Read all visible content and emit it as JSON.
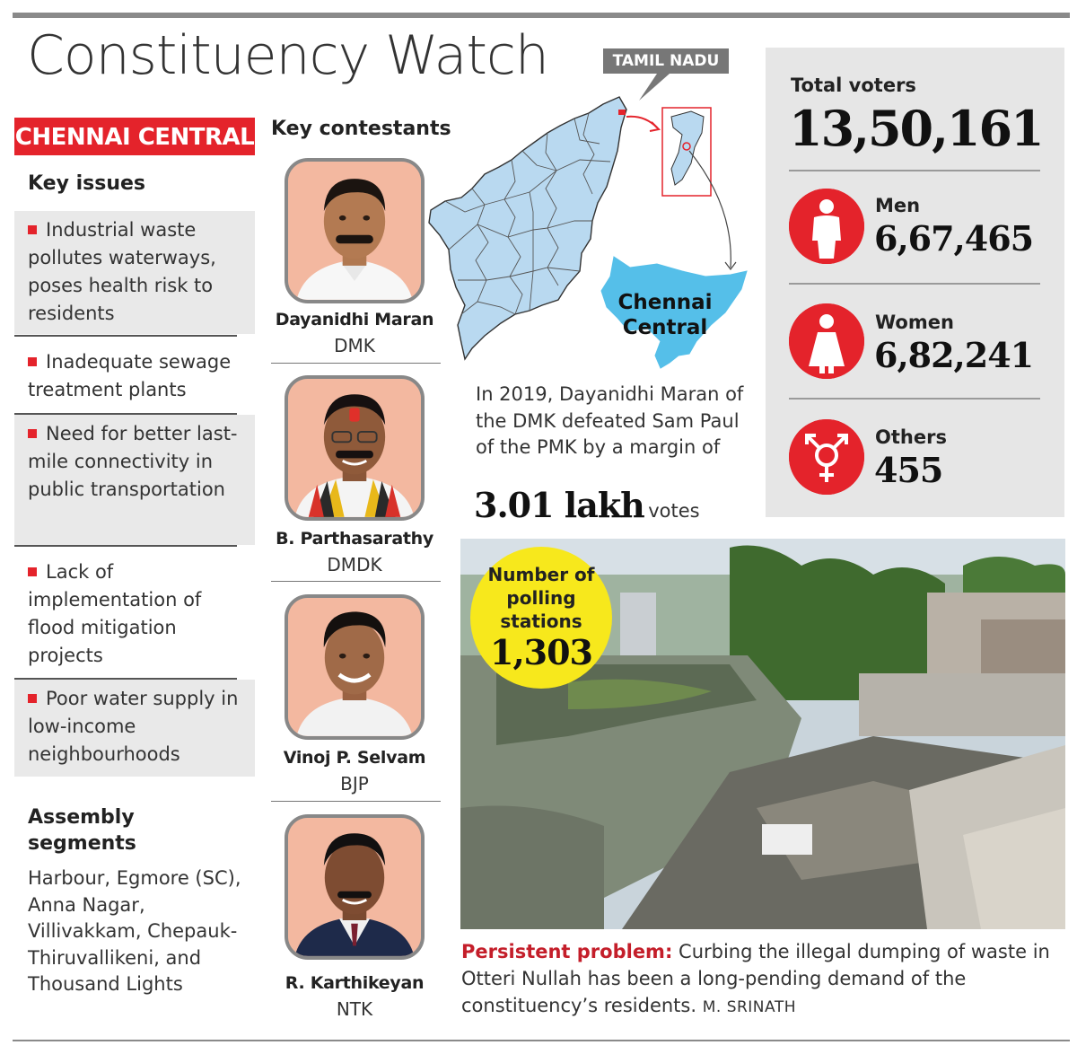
{
  "headline": "Constituency Watch",
  "constituency": "CHENNAI CENTRAL",
  "key_issues": {
    "title": "Key issues",
    "items": [
      "Industrial waste pollutes waterways, poses health risk to residents",
      "Inadequate sewage treatment plants",
      "Need for better last-mile connectivity in public transportation",
      "Lack of implementation of flood mitigation projects",
      "Poor water supply in low-income neighbourhoods"
    ]
  },
  "assembly_segments": {
    "title": "Assembly segments",
    "text": "Harbour, Egmore (SC), Anna Nagar, Villivakkam, Chepauk-Thiruvallikeni, and Thousand Lights"
  },
  "contestants": {
    "title": "Key contestants",
    "items": [
      {
        "name": "Dayanidhi Maran",
        "party": "DMK"
      },
      {
        "name": "B. Parthasarathy",
        "party": "DMDK"
      },
      {
        "name": "Vinoj P. Selvam",
        "party": "BJP"
      },
      {
        "name": "R. Karthikeyan",
        "party": "NTK"
      }
    ]
  },
  "map": {
    "state_label": "TAMIL NADU",
    "constituency_label": "Chennai Central",
    "fill_color": "#b9d9f0",
    "highlight_color": "#55bfe9"
  },
  "result": {
    "text": "In 2019, Dayanidhi Maran of the DMK defeated Sam Paul of the PMK by a margin of",
    "margin_value": "3.01 lakh",
    "margin_unit": "votes"
  },
  "voters": {
    "total_label": "Total voters",
    "total_value": "13,50,161",
    "men_label": "Men",
    "men_value": "6,67,465",
    "women_label": "Women",
    "women_value": "6,82,241",
    "others_label": "Others",
    "others_value": "455",
    "icon_color": "#e4232b"
  },
  "polling": {
    "label": "Number of polling stations",
    "value": "1,303"
  },
  "caption": {
    "lead": "Persistent problem:",
    "text": "Curbing the illegal dumping of waste in Otteri Nullah has been a long-pending demand of the constituency’s residents.",
    "credit": "M. SRINATH"
  },
  "colors": {
    "accent": "#e4232b",
    "panel": "#e6e6e6",
    "badge": "#f7e81c"
  }
}
